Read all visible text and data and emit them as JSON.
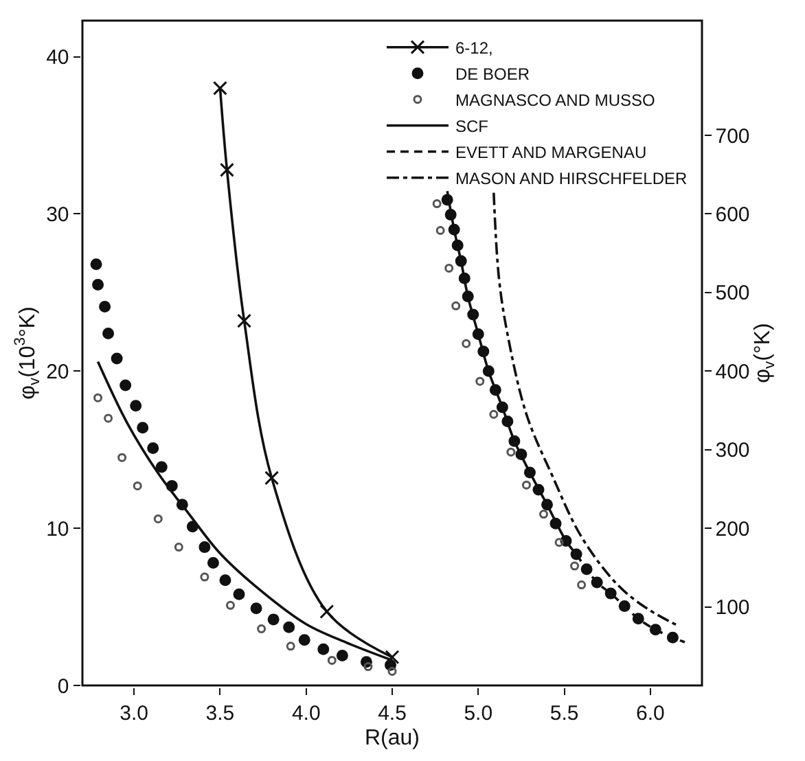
{
  "chart_data": {
    "type": "line",
    "xlabel": "R(au)",
    "ylabel": "φ$_{v}$(10$^{3}$°K)",
    "y2label": "φ$_{v}$(°K)",
    "xlim": [
      2.7,
      6.3
    ],
    "xticks": [
      {
        "value": 3,
        "label": "3.0"
      },
      3.5,
      {
        "value": 4,
        "label": "4.0"
      },
      4.5,
      {
        "value": 5,
        "label": "5.0"
      },
      5.5,
      {
        "value": 6,
        "label": "6.0"
      }
    ],
    "ylim": [
      0,
      42.3
    ],
    "yticks": [
      0,
      10,
      20,
      30,
      40
    ],
    "y2lim": [
      0,
      846
    ],
    "y2ticks": [
      100,
      200,
      300,
      400,
      500,
      600,
      700
    ],
    "legend": "top right",
    "series": [
      {
        "name": "6-12,",
        "marker": "cross",
        "line_style": "solid",
        "color": "#111111",
        "x": [
          3.5,
          3.54,
          3.64,
          3.8,
          4.12,
          4.5
        ],
        "values": [
          38.0,
          32.8,
          23.2,
          13.2,
          4.7,
          1.8
        ]
      },
      {
        "name": "DE BOER",
        "type": "scatter",
        "marker": "circle",
        "color": "#111111",
        "x": [
          2.78,
          2.79,
          2.83,
          2.85,
          2.9,
          2.95,
          3.01,
          3.05,
          3.11,
          3.16,
          3.22,
          3.28,
          3.34,
          3.41,
          3.46,
          3.53,
          3.61,
          3.71,
          3.81,
          3.9,
          3.99,
          4.1,
          4.21,
          4.35,
          4.49
        ],
        "values": [
          26.8,
          25.5,
          24.1,
          22.4,
          20.8,
          19.1,
          17.8,
          16.4,
          15.1,
          13.9,
          12.7,
          11.5,
          10.1,
          8.8,
          7.8,
          6.7,
          5.8,
          4.9,
          4.2,
          3.7,
          2.9,
          2.3,
          1.9,
          1.5,
          1.3
        ]
      },
      {
        "name": "MAGNASCO AND MUSSO",
        "type": "scatter",
        "marker": "circle-open",
        "color": "#555555",
        "x": [
          2.79,
          2.85,
          2.93,
          3.02,
          3.14,
          3.26,
          3.41,
          3.56,
          3.74,
          3.91,
          4.15,
          4.36,
          4.5
        ],
        "values": [
          18.3,
          17.0,
          14.5,
          12.7,
          10.6,
          8.8,
          6.9,
          5.1,
          3.6,
          2.5,
          1.6,
          1.2,
          0.9
        ]
      },
      {
        "name": "SCF",
        "line_style": "solid",
        "color": "#111111",
        "x": [
          2.79,
          2.96,
          3.14,
          3.32,
          3.5,
          3.74,
          4.0,
          4.24,
          4.5
        ],
        "values": [
          20.6,
          16.7,
          13.5,
          10.9,
          8.4,
          6.0,
          3.9,
          2.7,
          1.6
        ]
      },
      {
        "name": "EVETT AND MARGENAU",
        "line_style": "dashed",
        "axis": "y2",
        "color": "#111111",
        "x": [
          5.57,
          5.63,
          5.69,
          5.77,
          5.85,
          5.93,
          6.03,
          6.13,
          6.2
        ],
        "values": [
          167,
          148,
          131,
          117,
          101,
          85,
          71,
          61,
          55
        ]
      },
      {
        "name": "MASON AND HIRSCHFELDER",
        "line_style": "dashdot",
        "axis": "y2",
        "color": "#111111",
        "x": [
          5.09,
          5.12,
          5.17,
          5.28,
          5.43,
          5.6,
          5.81,
          5.98,
          6.17
        ],
        "values": [
          627,
          519,
          447,
          345,
          267,
          189,
          128,
          98,
          75
        ]
      },
      {
        "line_style": "solid",
        "axis": "y2",
        "color": "#111111",
        "x": [
          4.82,
          4.86,
          4.9,
          4.94,
          5.0,
          5.06,
          5.14,
          5.21,
          5.3,
          5.4,
          5.51,
          5.57
        ],
        "values": [
          629,
          580,
          540,
          495,
          447,
          400,
          354,
          311,
          271,
          230,
          184,
          167
        ]
      },
      {
        "type": "scatter",
        "marker": "circle",
        "axis": "y2",
        "color": "#111111",
        "x": [
          4.82,
          4.84,
          4.86,
          4.88,
          4.9,
          4.92,
          4.94,
          4.97,
          5.0,
          5.03,
          5.06,
          5.1,
          5.14,
          5.17,
          5.21,
          5.25,
          5.3,
          5.35,
          5.4,
          5.45,
          5.51,
          5.57,
          5.63,
          5.69,
          5.77,
          5.85,
          5.93,
          6.03,
          6.13
        ],
        "values": [
          618,
          599,
          580,
          560,
          540,
          518,
          495,
          472,
          447,
          425,
          400,
          376,
          354,
          336,
          311,
          294,
          271,
          249,
          230,
          206,
          184,
          167,
          148,
          131,
          117,
          101,
          85,
          71,
          61
        ]
      },
      {
        "type": "scatter",
        "marker": "circle-open",
        "axis": "y2",
        "color": "#555555",
        "x": [
          4.76,
          4.78,
          4.83,
          4.87,
          4.93,
          5.01,
          5.09,
          5.19,
          5.28,
          5.38,
          5.47,
          5.56,
          5.6
        ],
        "values": [
          613,
          579,
          531,
          483,
          435,
          387,
          345,
          297,
          255,
          218,
          182,
          152,
          128
        ]
      }
    ]
  }
}
